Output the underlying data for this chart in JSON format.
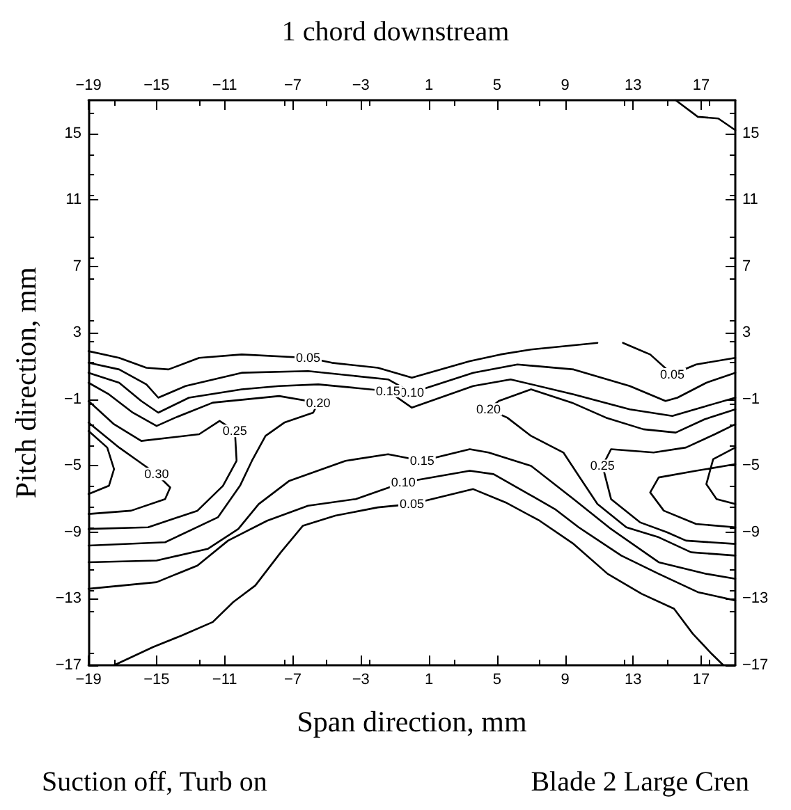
{
  "chart_data": {
    "type": "line",
    "title": "1 chord downstream",
    "xlabel": "Span direction, mm",
    "ylabel": "Pitch direction, mm",
    "annotations": [
      "Suction off, Turb on",
      "Blade 2 Large Cren"
    ],
    "xlim": [
      -19,
      19
    ],
    "xticks": [
      -19,
      -15,
      -11,
      -7,
      -3,
      1,
      5,
      9,
      13,
      17
    ],
    "x2lim": [
      -19,
      19
    ],
    "x2ticks": [
      -19,
      -15,
      -11,
      -7,
      -3,
      1,
      5,
      9,
      13,
      17
    ],
    "ylim": [
      -17,
      17
    ],
    "yticks": [
      -17,
      -13,
      -9,
      -5,
      -1,
      3,
      7,
      11,
      15
    ],
    "y2lim": [
      -17,
      17
    ],
    "y2ticks": [
      -17,
      -13,
      -9,
      -5,
      -1,
      3,
      7,
      11,
      15
    ],
    "grid": false,
    "legend": false,
    "marker": "none",
    "line_style": "solid",
    "series": [
      {
        "name": "0.05",
        "color": "#000000",
        "x": [
          -19,
          -17.2,
          -15.6,
          -14.3,
          -12.5,
          -10,
          -6.1,
          -4.7,
          -2,
          0,
          3.4,
          5.2,
          7,
          10.9,
          null,
          12.4,
          14,
          15.3,
          16.7,
          19,
          null,
          -17.5,
          -15.2,
          -13.5,
          -11.7,
          -10.5,
          -9.2,
          -7.7,
          -6.4,
          -4.5,
          -2,
          0,
          3.6,
          5.5,
          7.5,
          9.5,
          11.5,
          13.5,
          15.4,
          16.5,
          17.6,
          18.3
        ],
        "values": [
          1.9,
          1.5,
          0.9,
          0.8,
          1.5,
          1.7,
          1.5,
          1.2,
          0.9,
          0.3,
          1.3,
          1.7,
          2,
          2.4,
          null,
          2.4,
          1.7,
          0.5,
          1.1,
          1.5,
          null,
          -17,
          -15.9,
          -15.2,
          -14.4,
          -13.2,
          -12.2,
          -10.2,
          -8.6,
          -8,
          -7.5,
          -7.3,
          -6.4,
          -7.2,
          -8.3,
          -9.7,
          -11.5,
          -12.7,
          -13.6,
          -15.1,
          -16.3,
          -17
        ]
      },
      {
        "name": "0.10",
        "color": "#000000",
        "x": [
          -19,
          -17.2,
          -15.6,
          -14.9,
          -13.3,
          -10,
          -6.1,
          -1.4,
          0,
          3.6,
          6.2,
          9.5,
          12.8,
          14.9,
          15.6,
          17.3,
          19,
          null,
          -19,
          -15,
          -12.6,
          -10.8,
          -8.5,
          -6.1,
          -3.3,
          -0.5,
          3.4,
          4.8,
          8.4,
          9.8,
          12.3,
          14.5,
          16.8,
          19
        ],
        "values": [
          1.2,
          0.8,
          -0.1,
          -0.9,
          -0.2,
          0.6,
          0.7,
          0.2,
          -0.6,
          0.6,
          1.1,
          0.8,
          -0.2,
          -1.1,
          -0.9,
          0,
          0.6,
          null,
          -12.4,
          -12,
          -11,
          -9.5,
          -8.3,
          -7.4,
          -7,
          -6,
          -5.3,
          -5.5,
          -7.6,
          -8.7,
          -10.4,
          -11.5,
          -12.6,
          -13.1
        ]
      },
      {
        "name": "0.15",
        "color": "#000000",
        "x": [
          -19,
          -17.2,
          -15.9,
          -14.9,
          -13.1,
          -10,
          -7.8,
          -5.5,
          -1.4,
          0,
          3.6,
          5.8,
          9.5,
          12.8,
          15.3,
          17.3,
          19,
          null,
          -19,
          -15,
          -12,
          -10.2,
          -9,
          -7.2,
          -3.9,
          -1.4,
          0.6,
          3.4,
          4.5,
          7,
          9.5,
          11.7,
          14.5,
          17.3,
          19
        ],
        "values": [
          0.6,
          0,
          -1.1,
          -1.8,
          -0.9,
          -0.4,
          -0.2,
          -0.1,
          -0.5,
          -1.5,
          -0.2,
          0.2,
          -0.7,
          -1.6,
          -2,
          -1.4,
          -0.9,
          null,
          -10.8,
          -10.7,
          -10,
          -8.8,
          -7.3,
          -5.9,
          -4.7,
          -4.3,
          -4.7,
          -4,
          -4.2,
          -5,
          -7,
          -8.8,
          -10.8,
          -11.5,
          -11.8
        ]
      },
      {
        "name": "0.20",
        "color": "#000000",
        "x": [
          -19,
          -17.8,
          -16.4,
          -15,
          -13.9,
          -11.7,
          -7.8,
          -5.5,
          -5.8,
          -7.5,
          -8.6,
          -9.4,
          -10.1,
          -11.4,
          -14.5,
          -19,
          null,
          19,
          17.2,
          15.5,
          13.6,
          11.4,
          9.4,
          7,
          5.1,
          4.5,
          5.6,
          7,
          8.9,
          9.8,
          10.9,
          12.6,
          14.5,
          16.4,
          19
        ],
        "values": [
          0,
          -0.7,
          -1.8,
          -2.6,
          -2.1,
          -1.2,
          -0.8,
          -1.2,
          -1.8,
          -2.4,
          -3.2,
          -4.7,
          -6.2,
          -8.1,
          -9.6,
          -9.8,
          null,
          -1.6,
          -2.2,
          -3,
          -2.8,
          -2.1,
          -1.2,
          -0.4,
          -1.1,
          -1.6,
          -2.1,
          -3.2,
          -4.2,
          -5.6,
          -7.3,
          -8.7,
          -9.3,
          -10.2,
          -10.4
        ]
      },
      {
        "name": "0.25",
        "color": "#000000",
        "x": [
          -19,
          -17.5,
          -15.9,
          -12.5,
          -11.3,
          -10.4,
          -10.3,
          -11.1,
          -12.6,
          -15.5,
          -19,
          null,
          19,
          17.8,
          16.1,
          14.2,
          11.7,
          11.2,
          11.7,
          13.4,
          15,
          16.1,
          19
        ],
        "values": [
          -1.1,
          -2.5,
          -3.5,
          -3.1,
          -2.3,
          -2.9,
          -4.7,
          -6.2,
          -7.7,
          -8.7,
          -8.8,
          null,
          -2.5,
          -3.1,
          -3.9,
          -4.2,
          -4,
          -5,
          -7,
          -8.4,
          -9,
          -9.5,
          -9.7
        ]
      },
      {
        "name": "0.30",
        "color": "#000000",
        "x": [
          -19,
          -17.2,
          -16.1,
          -15,
          -14.2,
          -14.5,
          -16.5,
          -19
        ],
        "values": [
          -2.4,
          -3.9,
          -4.7,
          -5.5,
          -6.3,
          -7,
          -7.7,
          -7.9
        ]
      },
      {
        "color": "#000000",
        "x": [
          -19,
          -17.9,
          -17.5,
          -17.8,
          -19,
          null,
          19,
          16.7,
          14.5,
          14,
          14.8,
          16.7,
          19,
          null,
          19,
          17.7,
          17.3,
          17.9,
          19,
          null,
          15.5,
          16.8,
          18,
          19
        ],
        "values": [
          -2.9,
          -3.9,
          -5.2,
          -6.2,
          -6.7,
          null,
          -4.9,
          -5.3,
          -5.7,
          -6.6,
          -7.7,
          -8.5,
          -8.7,
          null,
          -3.9,
          -4.6,
          -6.1,
          -7,
          -7.3,
          null,
          17,
          16,
          15.9,
          15.2
        ]
      }
    ]
  }
}
